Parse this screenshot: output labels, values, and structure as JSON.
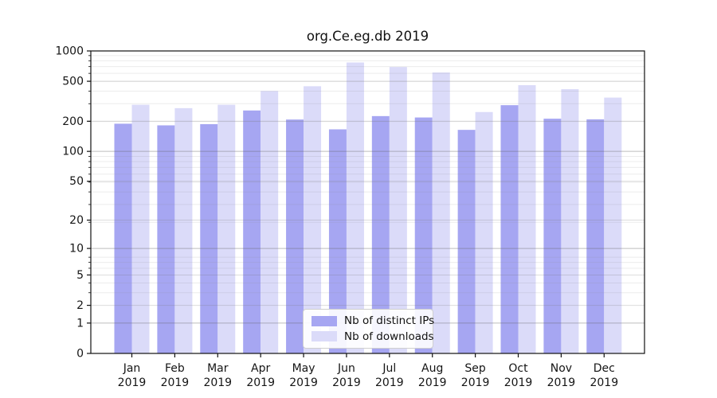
{
  "figure": {
    "title": "org.Ce.eg.db 2019"
  },
  "chart_data": {
    "type": "bar",
    "title": "org.Ce.eg.db 2019",
    "x_tick_months": [
      "Jan",
      "Feb",
      "Mar",
      "Apr",
      "May",
      "Jun",
      "Jul",
      "Aug",
      "Sep",
      "Oct",
      "Nov",
      "Dec"
    ],
    "x_tick_year": "2019",
    "categories": [
      "Jan 2019",
      "Feb 2019",
      "Mar 2019",
      "Apr 2019",
      "May 2019",
      "Jun 2019",
      "Jul 2019",
      "Aug 2019",
      "Sep 2019",
      "Oct 2019",
      "Nov 2019",
      "Dec 2019"
    ],
    "series": [
      {
        "name": "Nb of distinct IPs",
        "color": "#a6a6f2",
        "values": [
          189,
          182,
          187,
          256,
          208,
          166,
          225,
          218,
          164,
          289,
          212,
          209
        ]
      },
      {
        "name": "Nb of downloads",
        "color": "#dbdbf9",
        "values": [
          292,
          270,
          292,
          400,
          446,
          768,
          693,
          611,
          247,
          457,
          417,
          344
        ]
      }
    ],
    "y_scale": "log1p",
    "ylim": [
      0,
      1000
    ],
    "y_ticks": [
      0,
      1,
      2,
      5,
      10,
      20,
      50,
      100,
      200,
      500,
      1000
    ],
    "y_decade_gridlines": [
      1,
      10,
      100
    ],
    "y_minor_gridlines": [
      3,
      4,
      6,
      7,
      8,
      19,
      29,
      39,
      49,
      59,
      69,
      79,
      89,
      199,
      299,
      399,
      499,
      599,
      699,
      799,
      899
    ],
    "grid": true,
    "legend": {
      "position": "lower-center",
      "entries": [
        "Nb of distinct IPs",
        "Nb of downloads"
      ]
    }
  }
}
